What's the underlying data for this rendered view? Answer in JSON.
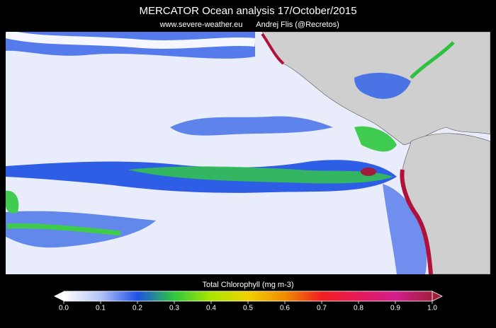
{
  "header": {
    "title": "MERCATOR Ocean analysis  17/October/2015",
    "website": "www.severe-weather.eu",
    "author": "Andrej Flis (@Recretos)"
  },
  "colorbar": {
    "label": "Total Chlorophyll (mg m-3)",
    "range": [
      0,
      1
    ],
    "ticks": [
      {
        "value": 0,
        "label": "0.0"
      },
      {
        "value": 0.1,
        "label": "0.1"
      },
      {
        "value": 0.2,
        "label": "0.2"
      },
      {
        "value": 0.3,
        "label": "0.3"
      },
      {
        "value": 0.4,
        "label": "0.4"
      },
      {
        "value": 0.5,
        "label": "0.5"
      },
      {
        "value": 0.6,
        "label": "0.6"
      },
      {
        "value": 0.7,
        "label": "0.7"
      },
      {
        "value": 0.8,
        "label": "0.8"
      },
      {
        "value": 0.9,
        "label": "0.9"
      },
      {
        "value": 1,
        "label": "1.0"
      }
    ],
    "colors": [
      "#ffffff",
      "#b4c3f5",
      "#1e50e6",
      "#2dc83c",
      "#aae600",
      "#f0d200",
      "#f08c00",
      "#f01e1e",
      "#e6195a",
      "#d21e8c",
      "#a01e3c"
    ]
  }
}
